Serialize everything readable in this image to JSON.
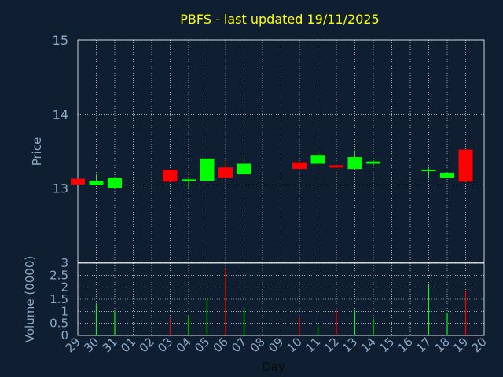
{
  "colors": {
    "background": "#0f1f31",
    "axis_text": "#8aa9c8",
    "title": "#ffff00",
    "grid": "#ffffff",
    "frame": "#ffffff",
    "up": "#00ff00",
    "down": "#ff0000",
    "xlabel": "#0a0a0a"
  },
  "chart_data": [
    {
      "type": "candlestick",
      "title": "PBFS - last updated 19/11/2025",
      "ylabel": "Price",
      "ylim": [
        12.0,
        15.0
      ],
      "yticks": [
        13,
        14,
        15
      ],
      "grid": true,
      "x": [
        "29",
        "30",
        "31",
        "01",
        "02",
        "03",
        "04",
        "05",
        "06",
        "07",
        "08",
        "09",
        "10",
        "11",
        "12",
        "13",
        "14",
        "15",
        "16",
        "17",
        "18",
        "19",
        "20"
      ],
      "candles": [
        {
          "day": "29",
          "open": 13.13,
          "high": 13.13,
          "low": 13.05,
          "close": 13.05
        },
        {
          "day": "30",
          "open": 13.04,
          "high": 13.19,
          "low": 13.04,
          "close": 13.1
        },
        {
          "day": "31",
          "open": 13.0,
          "high": 13.15,
          "low": 13.0,
          "close": 13.14
        },
        {
          "day": "03",
          "open": 13.25,
          "high": 13.25,
          "low": 13.09,
          "close": 13.09
        },
        {
          "day": "04",
          "open": 13.1,
          "high": 13.13,
          "low": 13.0,
          "close": 13.12
        },
        {
          "day": "05",
          "open": 13.1,
          "high": 13.4,
          "low": 13.1,
          "close": 13.4
        },
        {
          "day": "06",
          "open": 13.28,
          "high": 13.35,
          "low": 13.13,
          "close": 13.14
        },
        {
          "day": "07",
          "open": 13.19,
          "high": 13.4,
          "low": 13.18,
          "close": 13.33
        },
        {
          "day": "10",
          "open": 13.35,
          "high": 13.35,
          "low": 13.25,
          "close": 13.26
        },
        {
          "day": "11",
          "open": 13.33,
          "high": 13.48,
          "low": 13.33,
          "close": 13.45
        },
        {
          "day": "12",
          "open": 13.31,
          "high": 13.31,
          "low": 13.27,
          "close": 13.28
        },
        {
          "day": "13",
          "open": 13.26,
          "high": 13.51,
          "low": 13.24,
          "close": 13.42
        },
        {
          "day": "14",
          "open": 13.33,
          "high": 13.37,
          "low": 13.31,
          "close": 13.36
        },
        {
          "day": "17",
          "open": 13.24,
          "high": 13.28,
          "low": 13.15,
          "close": 13.25
        },
        {
          "day": "18",
          "open": 13.14,
          "high": 13.22,
          "low": 13.14,
          "close": 13.21
        },
        {
          "day": "19",
          "open": 13.52,
          "high": 13.52,
          "low": 13.09,
          "close": 13.09
        }
      ]
    },
    {
      "type": "bar",
      "ylabel": "Volume (0000)",
      "xlabel": "Day",
      "ylim": [
        0,
        3
      ],
      "yticks": [
        "0",
        "0.5",
        "1",
        "1.5",
        "2",
        "2.5",
        "3"
      ],
      "grid": true,
      "x": [
        "29",
        "30",
        "31",
        "01",
        "02",
        "03",
        "04",
        "05",
        "06",
        "07",
        "08",
        "09",
        "10",
        "11",
        "12",
        "13",
        "14",
        "15",
        "16",
        "17",
        "18",
        "19",
        "20"
      ],
      "bars": [
        {
          "day": "30",
          "value": 1.3,
          "direction": "up"
        },
        {
          "day": "31",
          "value": 1.0,
          "direction": "up"
        },
        {
          "day": "03",
          "value": 0.75,
          "direction": "down"
        },
        {
          "day": "04",
          "value": 0.8,
          "direction": "up"
        },
        {
          "day": "05",
          "value": 1.5,
          "direction": "up"
        },
        {
          "day": "06",
          "value": 2.75,
          "direction": "down"
        },
        {
          "day": "07",
          "value": 1.15,
          "direction": "up"
        },
        {
          "day": "10",
          "value": 0.75,
          "direction": "down"
        },
        {
          "day": "11",
          "value": 0.4,
          "direction": "up"
        },
        {
          "day": "12",
          "value": 1.05,
          "direction": "down"
        },
        {
          "day": "13",
          "value": 1.05,
          "direction": "up"
        },
        {
          "day": "14",
          "value": 0.7,
          "direction": "up"
        },
        {
          "day": "17",
          "value": 2.15,
          "direction": "up"
        },
        {
          "day": "18",
          "value": 0.95,
          "direction": "up"
        },
        {
          "day": "19",
          "value": 1.85,
          "direction": "down"
        }
      ]
    }
  ]
}
